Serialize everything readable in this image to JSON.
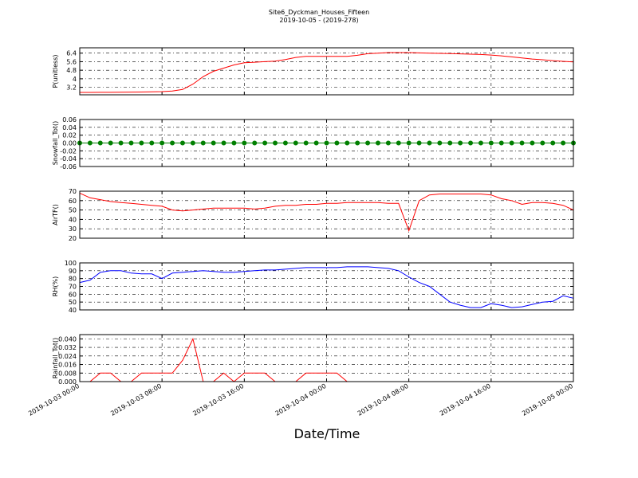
{
  "title": "Site6_Dyckman_Houses_Fifteen",
  "subtitle": "2019-10-05 - (2019-278)",
  "xlabel": "Date/Time",
  "xlim": [
    "2019-10-03 00:00",
    "2019-10-05 00:00"
  ],
  "xticks": [
    "2019-10-03 00:00",
    "2019-10-03 08:00",
    "2019-10-03 16:00",
    "2019-10-04 00:00",
    "2019-10-04 08:00",
    "2019-10-04 16:00",
    "2019-10-05 00:00"
  ],
  "x": [
    "2019-10-03 00:00",
    "2019-10-03 01:00",
    "2019-10-03 02:00",
    "2019-10-03 03:00",
    "2019-10-03 04:00",
    "2019-10-03 05:00",
    "2019-10-03 06:00",
    "2019-10-03 07:00",
    "2019-10-03 08:00",
    "2019-10-03 09:00",
    "2019-10-03 10:00",
    "2019-10-03 11:00",
    "2019-10-03 12:00",
    "2019-10-03 13:00",
    "2019-10-03 14:00",
    "2019-10-03 15:00",
    "2019-10-03 16:00",
    "2019-10-03 17:00",
    "2019-10-03 18:00",
    "2019-10-03 19:00",
    "2019-10-03 20:00",
    "2019-10-03 21:00",
    "2019-10-03 22:00",
    "2019-10-03 23:00",
    "2019-10-04 00:00",
    "2019-10-04 01:00",
    "2019-10-04 02:00",
    "2019-10-04 03:00",
    "2019-10-04 04:00",
    "2019-10-04 05:00",
    "2019-10-04 06:00",
    "2019-10-04 07:00",
    "2019-10-04 08:00",
    "2019-10-04 09:00",
    "2019-10-04 10:00",
    "2019-10-04 11:00",
    "2019-10-04 12:00",
    "2019-10-04 13:00",
    "2019-10-04 14:00",
    "2019-10-04 15:00",
    "2019-10-04 16:00",
    "2019-10-04 17:00",
    "2019-10-04 18:00",
    "2019-10-04 19:00",
    "2019-10-04 20:00",
    "2019-10-04 21:00",
    "2019-10-04 22:00",
    "2019-10-04 23:00",
    "2019-10-05 00:00"
  ],
  "chart_data": [
    {
      "type": "line",
      "ylabel": "P(unitless)",
      "ylim": [
        2.5,
        6.9
      ],
      "yticks": [
        3.2,
        4.0,
        4.8,
        5.6,
        6.4
      ],
      "grid": true,
      "series": [
        {
          "color": "#ff0000",
          "values": [
            2.72,
            2.72,
            2.73,
            2.73,
            2.74,
            2.75,
            2.76,
            2.78,
            2.8,
            2.85,
            3.0,
            3.5,
            4.2,
            4.7,
            5.0,
            5.3,
            5.5,
            5.55,
            5.6,
            5.65,
            5.8,
            6.0,
            6.1,
            6.1,
            6.1,
            6.1,
            6.1,
            6.2,
            6.35,
            6.4,
            6.45,
            6.45,
            6.45,
            6.42,
            6.4,
            6.38,
            6.36,
            6.33,
            6.3,
            6.27,
            6.22,
            6.15,
            6.05,
            5.95,
            5.85,
            5.78,
            5.7,
            5.63,
            5.58
          ]
        }
      ]
    },
    {
      "type": "line",
      "marker": true,
      "ylabel": "Snowfall_Tot()",
      "ylim": [
        -0.06,
        0.06
      ],
      "yticks": [
        -0.06,
        -0.04,
        -0.02,
        {
          "value": 0,
          "label": "0.00"
        },
        0.02,
        0.04,
        0.06
      ],
      "grid": true,
      "series": [
        {
          "color": "#008000",
          "values": [
            0,
            0,
            0,
            0,
            0,
            0,
            0,
            0,
            0,
            0,
            0,
            0,
            0,
            0,
            0,
            0,
            0,
            0,
            0,
            0,
            0,
            0,
            0,
            0,
            0,
            0,
            0,
            0,
            0,
            0,
            0,
            0,
            0,
            0,
            0,
            0,
            0,
            0,
            0,
            0,
            0,
            0,
            0,
            0,
            0,
            0,
            0,
            0,
            0
          ]
        }
      ]
    },
    {
      "type": "line",
      "ylabel": "AirTF()",
      "ylim": [
        20,
        70
      ],
      "yticks": [
        20,
        30,
        40,
        50,
        60,
        70
      ],
      "grid": true,
      "series": [
        {
          "color": "#ff0000",
          "values": [
            68,
            63,
            61,
            59,
            58,
            57,
            56,
            55,
            54,
            50,
            49,
            50,
            51,
            52,
            52,
            52,
            52,
            51,
            52,
            54,
            55,
            55,
            56,
            56,
            57,
            57,
            58,
            58,
            58,
            58,
            57,
            57,
            28,
            60,
            66,
            67,
            67,
            67,
            67,
            67,
            66,
            62,
            60,
            56,
            58,
            58,
            57,
            55,
            50
          ]
        }
      ]
    },
    {
      "type": "line",
      "ylabel": "RH(%)",
      "ylim": [
        40,
        100
      ],
      "yticks": [
        40,
        50,
        60,
        70,
        80,
        90,
        100
      ],
      "grid": true,
      "series": [
        {
          "color": "#0000ff",
          "values": [
            75,
            78,
            88,
            90,
            90,
            87,
            86,
            86,
            80,
            87,
            88,
            89,
            90,
            89,
            88,
            88,
            89,
            90,
            91,
            91,
            92,
            93,
            94,
            94,
            94,
            94,
            95,
            95,
            95,
            94,
            93,
            90,
            82,
            75,
            70,
            60,
            50,
            46,
            43,
            43,
            48,
            46,
            43,
            44,
            47,
            50,
            51,
            58,
            55
          ]
        }
      ]
    },
    {
      "type": "line",
      "ylabel": "Rainfall_Tot()",
      "ylim": [
        0,
        0.044
      ],
      "yticks": [
        {
          "value": 0,
          "label": "0.000"
        },
        {
          "value": 0.008,
          "label": "0.008"
        },
        {
          "value": 0.016,
          "label": "0.016"
        },
        {
          "value": 0.024,
          "label": "0.024"
        },
        {
          "value": 0.032,
          "label": "0.032"
        },
        {
          "value": 0.04,
          "label": "0.040"
        }
      ],
      "grid": true,
      "series": [
        {
          "color": "#ff0000",
          "values": [
            0,
            0,
            0.008,
            0.008,
            0,
            0,
            0.008,
            0.008,
            0.008,
            0.008,
            0.02,
            0.04,
            0,
            0,
            0.008,
            0,
            0.008,
            0.008,
            0.008,
            0,
            0,
            0,
            0.008,
            0.008,
            0.008,
            0.008,
            0,
            0,
            0,
            0,
            0,
            0,
            0,
            0,
            0,
            0,
            0,
            0,
            0,
            0,
            0,
            0,
            0,
            0,
            0,
            0,
            0,
            0,
            0
          ]
        }
      ]
    }
  ]
}
